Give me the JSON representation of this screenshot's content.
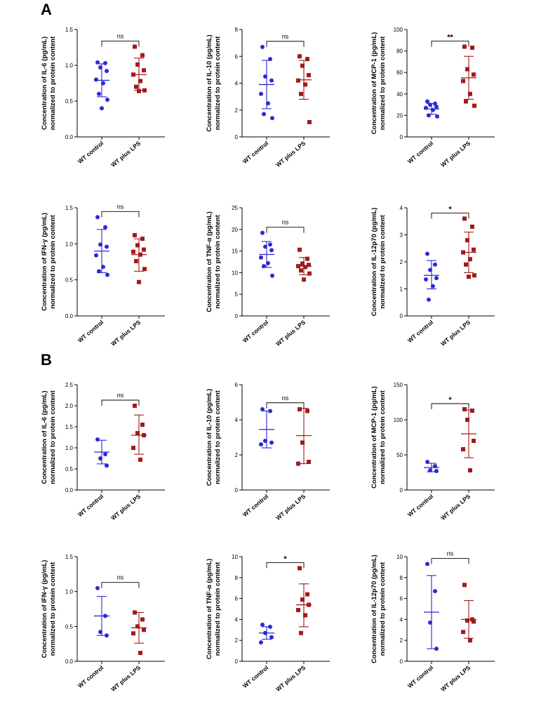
{
  "panels": [
    {
      "label": "A"
    },
    {
      "label": "B"
    }
  ],
  "colors": {
    "control": "#2a2ad6",
    "lps": "#a31a1a",
    "axis": "#000000"
  },
  "chart_data": [
    {
      "type": "scatter",
      "panel": "A",
      "ylabel_line1": "Concentration of IL-6 (pg/mL)",
      "ylabel_line2": "normalized to protein content",
      "ylim": [
        0,
        1.5
      ],
      "yticks": [
        "0.0",
        "0.5",
        "1.0",
        "1.5"
      ],
      "categories": [
        "WT control",
        "WT plus LPS"
      ],
      "significance": "ns",
      "series": [
        {
          "name": "WT control",
          "values": [
            1.04,
            1.03,
            0.97,
            0.92,
            0.8,
            0.75,
            0.6,
            0.52,
            0.4
          ],
          "mean": 0.79,
          "sd_low": 0.56,
          "sd_high": 1.02
        },
        {
          "name": "WT plus LPS",
          "values": [
            1.26,
            1.14,
            1.01,
            0.93,
            0.87,
            0.78,
            0.7,
            0.65,
            0.64
          ],
          "mean": 0.87,
          "sd_low": 0.65,
          "sd_high": 1.1
        }
      ]
    },
    {
      "type": "scatter",
      "panel": "A",
      "ylabel_line1": "Concentration of IL-10 (pg/mL)",
      "ylabel_line2": "normalized to protein content",
      "ylim": [
        0,
        8
      ],
      "yticks": [
        "0",
        "2",
        "4",
        "6",
        "8"
      ],
      "categories": [
        "WT control",
        "WT plus LPS"
      ],
      "significance": "ns",
      "series": [
        {
          "name": "WT control",
          "values": [
            6.7,
            5.8,
            4.5,
            4.2,
            3.2,
            2.5,
            1.7,
            1.4
          ],
          "mean": 3.9,
          "sd_low": 2.1,
          "sd_high": 5.7
        },
        {
          "name": "WT plus LPS",
          "values": [
            6.0,
            5.8,
            5.3,
            4.6,
            4.2,
            3.9,
            3.2,
            1.1
          ],
          "mean": 4.25,
          "sd_low": 2.8,
          "sd_high": 5.7
        }
      ]
    },
    {
      "type": "scatter",
      "panel": "A",
      "ylabel_line1": "Concentration of MCP-1 (pg/mL)",
      "ylabel_line2": "normalized to protein content",
      "ylim": [
        0,
        100
      ],
      "yticks": [
        "0",
        "20",
        "40",
        "60",
        "80",
        "100"
      ],
      "categories": [
        "WT control",
        "WT plus LPS"
      ],
      "significance": "**",
      "series": [
        {
          "name": "WT control",
          "values": [
            33,
            31,
            30,
            28,
            27,
            25,
            20,
            19
          ],
          "mean": 26,
          "sd_low": 21,
          "sd_high": 31
        },
        {
          "name": "WT plus LPS",
          "values": [
            84,
            83,
            63,
            58,
            52,
            40,
            33,
            29
          ],
          "mean": 55,
          "sd_low": 35,
          "sd_high": 75
        }
      ]
    },
    {
      "type": "scatter",
      "panel": "A",
      "ylabel_line1": "Concentration of IFN-γ (pg/mL)",
      "ylabel_line2": "normalized to protein content",
      "ylim": [
        0,
        1.5
      ],
      "yticks": [
        "0.0",
        "0.5",
        "1.0",
        "1.5"
      ],
      "categories": [
        "WT control",
        "WT plus LPS"
      ],
      "significance": "ns",
      "series": [
        {
          "name": "WT control",
          "values": [
            1.37,
            1.23,
            0.99,
            0.96,
            0.84,
            0.68,
            0.62,
            0.57
          ],
          "mean": 0.9,
          "sd_low": 0.6,
          "sd_high": 1.2
        },
        {
          "name": "WT plus LPS",
          "values": [
            1.12,
            1.07,
            0.98,
            0.92,
            0.89,
            0.85,
            0.76,
            0.65,
            0.47
          ],
          "mean": 0.85,
          "sd_low": 0.62,
          "sd_high": 1.07
        }
      ]
    },
    {
      "type": "scatter",
      "panel": "A",
      "ylabel_line1": "Concentration of TNF-α (pg/mL)",
      "ylabel_line2": "normalized to protein content",
      "ylim": [
        0,
        25
      ],
      "yticks": [
        "0",
        "5",
        "10",
        "15",
        "20",
        "25"
      ],
      "categories": [
        "WT control",
        "WT plus LPS"
      ],
      "significance": "ns",
      "series": [
        {
          "name": "WT control",
          "values": [
            19.2,
            16.5,
            16.0,
            15.2,
            13.5,
            12.2,
            11.5,
            9.3
          ],
          "mean": 14.2,
          "sd_low": 11.2,
          "sd_high": 17.2
        },
        {
          "name": "WT plus LPS",
          "values": [
            15.3,
            13.2,
            12.1,
            11.8,
            11.5,
            11.3,
            10.5,
            9.8,
            8.4
          ],
          "mean": 11.5,
          "sd_low": 9.5,
          "sd_high": 13.5
        }
      ]
    },
    {
      "type": "scatter",
      "panel": "A",
      "ylabel_line1": "Concentration of IL-12p70 (pg/mL)",
      "ylabel_line2": "normalized to protein content",
      "ylim": [
        0,
        4
      ],
      "yticks": [
        "0",
        "1",
        "2",
        "3",
        "4"
      ],
      "categories": [
        "WT control",
        "WT plus LPS"
      ],
      "significance": "*",
      "series": [
        {
          "name": "WT control",
          "values": [
            2.3,
            1.9,
            1.7,
            1.4,
            1.35,
            1.1,
            0.6
          ],
          "mean": 1.5,
          "sd_low": 1.0,
          "sd_high": 2.05
        },
        {
          "name": "WT plus LPS",
          "values": [
            3.6,
            3.3,
            2.8,
            2.45,
            2.35,
            2.1,
            1.9,
            1.5,
            1.45
          ],
          "mean": 2.35,
          "sd_low": 1.6,
          "sd_high": 3.1
        }
      ]
    },
    {
      "type": "scatter",
      "panel": "B",
      "ylabel_line1": "Concentration of IL-6 (pg/mL)",
      "ylabel_line2": "normalized to protein content",
      "ylim": [
        0,
        2.5
      ],
      "yticks": [
        "0.0",
        "0.5",
        "1.0",
        "1.5",
        "2.0",
        "2.5"
      ],
      "categories": [
        "WT control",
        "WT plus LPS"
      ],
      "significance": "ns",
      "series": [
        {
          "name": "WT control",
          "values": [
            1.2,
            0.85,
            0.75,
            0.58
          ],
          "mean": 0.9,
          "sd_low": 0.62,
          "sd_high": 1.18
        },
        {
          "name": "WT plus LPS",
          "values": [
            2.0,
            1.55,
            1.35,
            1.3,
            1.0,
            0.72
          ],
          "mean": 1.3,
          "sd_low": 0.85,
          "sd_high": 1.78
        }
      ]
    },
    {
      "type": "scatter",
      "panel": "B",
      "ylabel_line1": "Concentration of IL-10 (pg/mL)",
      "ylabel_line2": "normalized to protein content",
      "ylim": [
        0,
        6
      ],
      "yticks": [
        "0",
        "2",
        "4",
        "6"
      ],
      "categories": [
        "WT control",
        "WT plus LPS"
      ],
      "significance": "ns",
      "series": [
        {
          "name": "WT control",
          "values": [
            4.6,
            4.5,
            2.8,
            2.7,
            2.6
          ],
          "mean": 3.45,
          "sd_low": 2.4,
          "sd_high": 4.5
        },
        {
          "name": "WT plus LPS",
          "values": [
            4.6,
            4.5,
            2.7,
            1.6,
            1.5
          ],
          "mean": 3.1,
          "sd_low": 1.5,
          "sd_high": 4.65
        }
      ]
    },
    {
      "type": "scatter",
      "panel": "B",
      "ylabel_line1": "Concentration of MCP-1 (pg/mL)",
      "ylabel_line2": "normalized to protein content",
      "ylim": [
        0,
        150
      ],
      "yticks": [
        "0",
        "50",
        "100",
        "150"
      ],
      "categories": [
        "WT control",
        "WT plus LPS"
      ],
      "significance": "*",
      "series": [
        {
          "name": "WT control",
          "values": [
            40,
            34,
            28,
            27
          ],
          "mean": 32,
          "sd_low": 26,
          "sd_high": 38
        },
        {
          "name": "WT plus LPS",
          "values": [
            115,
            113,
            100,
            70,
            58,
            28
          ],
          "mean": 80,
          "sd_low": 46,
          "sd_high": 114
        }
      ]
    },
    {
      "type": "scatter",
      "panel": "B",
      "ylabel_line1": "Concentration of IFN-γ (pg/mL)",
      "ylabel_line2": "normalized to protein content",
      "ylim": [
        0,
        1.5
      ],
      "yticks": [
        "0.0",
        "0.5",
        "1.0",
        "1.5"
      ],
      "categories": [
        "WT control",
        "WT plus LPS"
      ],
      "significance": "ns",
      "series": [
        {
          "name": "WT control",
          "values": [
            1.05,
            0.65,
            0.42,
            0.37
          ],
          "mean": 0.65,
          "sd_low": 0.37,
          "sd_high": 0.93
        },
        {
          "name": "WT plus LPS",
          "values": [
            0.7,
            0.6,
            0.5,
            0.45,
            0.4,
            0.12
          ],
          "mean": 0.48,
          "sd_low": 0.26,
          "sd_high": 0.7
        }
      ]
    },
    {
      "type": "scatter",
      "panel": "B",
      "ylabel_line1": "Concentration of TNF-α (pg/mL)",
      "ylabel_line2": "normalized to protein content",
      "ylim": [
        0,
        10
      ],
      "yticks": [
        "0",
        "2",
        "4",
        "6",
        "8",
        "10"
      ],
      "categories": [
        "WT control",
        "WT plus LPS"
      ],
      "significance": "*",
      "series": [
        {
          "name": "WT control",
          "values": [
            3.5,
            3.3,
            2.7,
            2.3,
            1.8
          ],
          "mean": 2.7,
          "sd_low": 2.1,
          "sd_high": 3.3
        },
        {
          "name": "WT plus LPS",
          "values": [
            8.9,
            6.4,
            5.9,
            5.4,
            4.9,
            4.4,
            2.7
          ],
          "mean": 5.4,
          "sd_low": 3.3,
          "sd_high": 7.4
        }
      ]
    },
    {
      "type": "scatter",
      "panel": "B",
      "ylabel_line1": "Concentration of IL-12p70 (pg/mL)",
      "ylabel_line2": "normalized to protein content",
      "ylim": [
        0,
        10
      ],
      "yticks": [
        "0",
        "2",
        "4",
        "6",
        "8",
        "10"
      ],
      "categories": [
        "WT control",
        "WT plus LPS"
      ],
      "significance": "ns",
      "series": [
        {
          "name": "WT control",
          "values": [
            9.3,
            6.7,
            3.7,
            1.2
          ],
          "mean": 4.7,
          "sd_low": 1.2,
          "sd_high": 8.2
        },
        {
          "name": "WT plus LPS",
          "values": [
            7.3,
            4.0,
            3.9,
            3.8,
            2.8,
            2.0
          ],
          "mean": 4.0,
          "sd_low": 2.2,
          "sd_high": 5.8
        }
      ]
    }
  ]
}
